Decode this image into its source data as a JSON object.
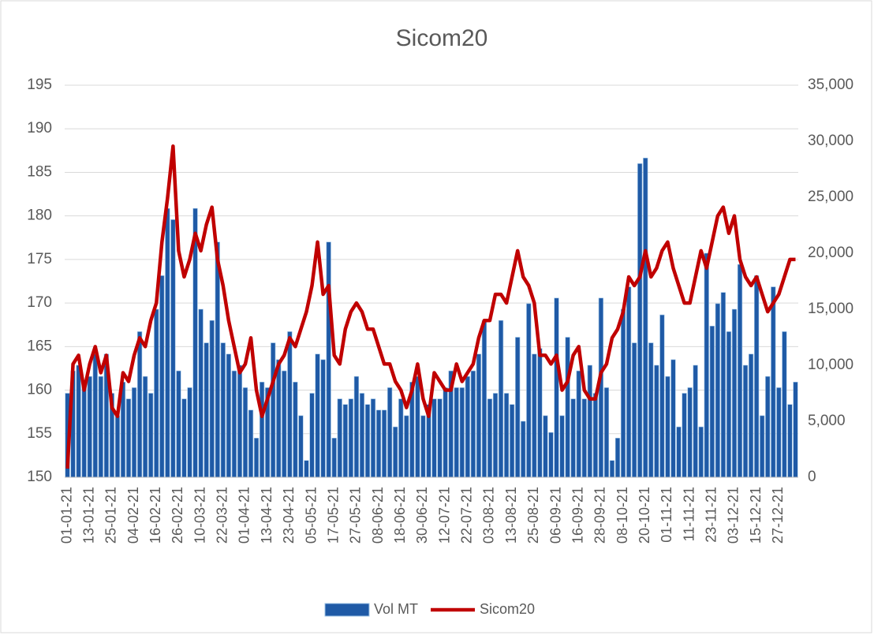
{
  "chart_data": {
    "type": "bar-line",
    "title": "Sicom20",
    "categories": [
      "01-01-21",
      null,
      null,
      null,
      "13-01-21",
      null,
      null,
      null,
      "25-01-21",
      null,
      null,
      null,
      "04-02-21",
      null,
      null,
      null,
      "16-02-21",
      null,
      null,
      null,
      "26-02-21",
      null,
      null,
      null,
      "10-03-21",
      null,
      null,
      null,
      "22-03-21",
      null,
      null,
      null,
      "01-04-21",
      null,
      null,
      null,
      "13-04-21",
      null,
      null,
      null,
      "23-04-21",
      null,
      null,
      null,
      "05-05-21",
      null,
      null,
      null,
      "17-05-21",
      null,
      null,
      null,
      "27-05-21",
      null,
      null,
      null,
      "08-06-21",
      null,
      null,
      null,
      "18-06-21",
      null,
      null,
      null,
      "30-06-21",
      null,
      null,
      null,
      "12-07-21",
      null,
      null,
      null,
      "22-07-21",
      null,
      null,
      null,
      "03-08-21",
      null,
      null,
      null,
      "13-08-21",
      null,
      null,
      null,
      "25-08-21",
      null,
      null,
      null,
      "06-09-21",
      null,
      null,
      null,
      "16-09-21",
      null,
      null,
      null,
      "28-09-21",
      null,
      null,
      null,
      "08-10-21",
      null,
      null,
      null,
      "20-10-21",
      null,
      null,
      null,
      "01-11-21",
      null,
      null,
      null,
      "11-11-21",
      null,
      null,
      null,
      "23-11-21",
      null,
      null,
      null,
      "03-12-21",
      null,
      null,
      null,
      "15-12-21",
      null,
      null,
      null,
      "27-12-21",
      null,
      null,
      null
    ],
    "series": [
      {
        "name": "Vol MT",
        "type": "bar",
        "axis": "y2",
        "color": "#1f5aa6",
        "values": [
          7500,
          9500,
          10000,
          8500,
          9000,
          11000,
          9000,
          11000,
          7500,
          5500,
          8500,
          7000,
          8000,
          13000,
          9000,
          7500,
          15000,
          18000,
          24000,
          23000,
          9500,
          7000,
          8000,
          24000,
          15000,
          12000,
          14000,
          21000,
          12000,
          11000,
          9500,
          10000,
          8000,
          6000,
          3500,
          8500,
          8000,
          12000,
          10500,
          9500,
          13000,
          8500,
          5500,
          1500,
          7500,
          11000,
          10500,
          21000,
          3500,
          7000,
          6500,
          7000,
          9000,
          7500,
          6500,
          7000,
          6000,
          6000,
          8000,
          4500,
          7000,
          5500,
          8500,
          9000,
          5500,
          6500,
          7000,
          7000,
          8000,
          9500,
          8000,
          8000,
          9000,
          9500,
          11000,
          14000,
          7000,
          7500,
          14000,
          7500,
          6500,
          12500,
          5000,
          15500,
          11000,
          11500,
          5500,
          4000,
          16000,
          5500,
          12500,
          7000,
          9500,
          7000,
          10000,
          7500,
          16000,
          8000,
          1500,
          3500,
          15000,
          17000,
          12000,
          28000,
          28500,
          12000,
          10000,
          14500,
          9000,
          10500,
          4500,
          7500,
          8000,
          10000,
          4500,
          20000,
          13500,
          15500,
          16500,
          13000,
          15000,
          19000,
          10000,
          11000,
          18000,
          5500,
          9000,
          17000,
          8000,
          13000,
          6500,
          8500
        ]
      },
      {
        "name": "Sicom20",
        "type": "line",
        "axis": "y",
        "color": "#c00000",
        "values": [
          151,
          163,
          164,
          160,
          163,
          165,
          162,
          164,
          158,
          157,
          162,
          161,
          164,
          166,
          165,
          168,
          170,
          177,
          182,
          188,
          176,
          173,
          175,
          178,
          176,
          179,
          181,
          175,
          172,
          168,
          165,
          162,
          163,
          166,
          160,
          157,
          159,
          161,
          163,
          164,
          166,
          165,
          167,
          169,
          172,
          177,
          171,
          172,
          164,
          163,
          167,
          169,
          170,
          169,
          167,
          167,
          165,
          163,
          163,
          161,
          160,
          158,
          160,
          163,
          159,
          157,
          162,
          161,
          160,
          160,
          163,
          161,
          162,
          163,
          166,
          168,
          168,
          171,
          171,
          170,
          173,
          176,
          173,
          172,
          170,
          164,
          164,
          163,
          164,
          160,
          161,
          164,
          165,
          160,
          159,
          159,
          162,
          163,
          166,
          167,
          169,
          173,
          172,
          173,
          176,
          173,
          174,
          176,
          177,
          174,
          172,
          170,
          170,
          173,
          176,
          174,
          177,
          180,
          181,
          178,
          180,
          175,
          173,
          172,
          173,
          171,
          169,
          170,
          171,
          173,
          175,
          175
        ]
      }
    ],
    "ylim": [
      150,
      195
    ],
    "yticks": [
      150,
      155,
      160,
      165,
      170,
      175,
      180,
      185,
      190,
      195
    ],
    "y2lim": [
      0,
      35000
    ],
    "y2ticks": [
      0,
      {
        "value": 5000,
        "label": "5,000"
      },
      {
        "value": 10000,
        "label": "10,000"
      },
      {
        "value": 15000,
        "label": "15,000"
      },
      {
        "value": 20000,
        "label": "20,000"
      },
      {
        "value": 25000,
        "label": "25,000"
      },
      {
        "value": 30000,
        "label": "30,000"
      },
      {
        "value": 35000,
        "label": "35,000"
      }
    ],
    "grid": true,
    "legend": "bottom"
  }
}
